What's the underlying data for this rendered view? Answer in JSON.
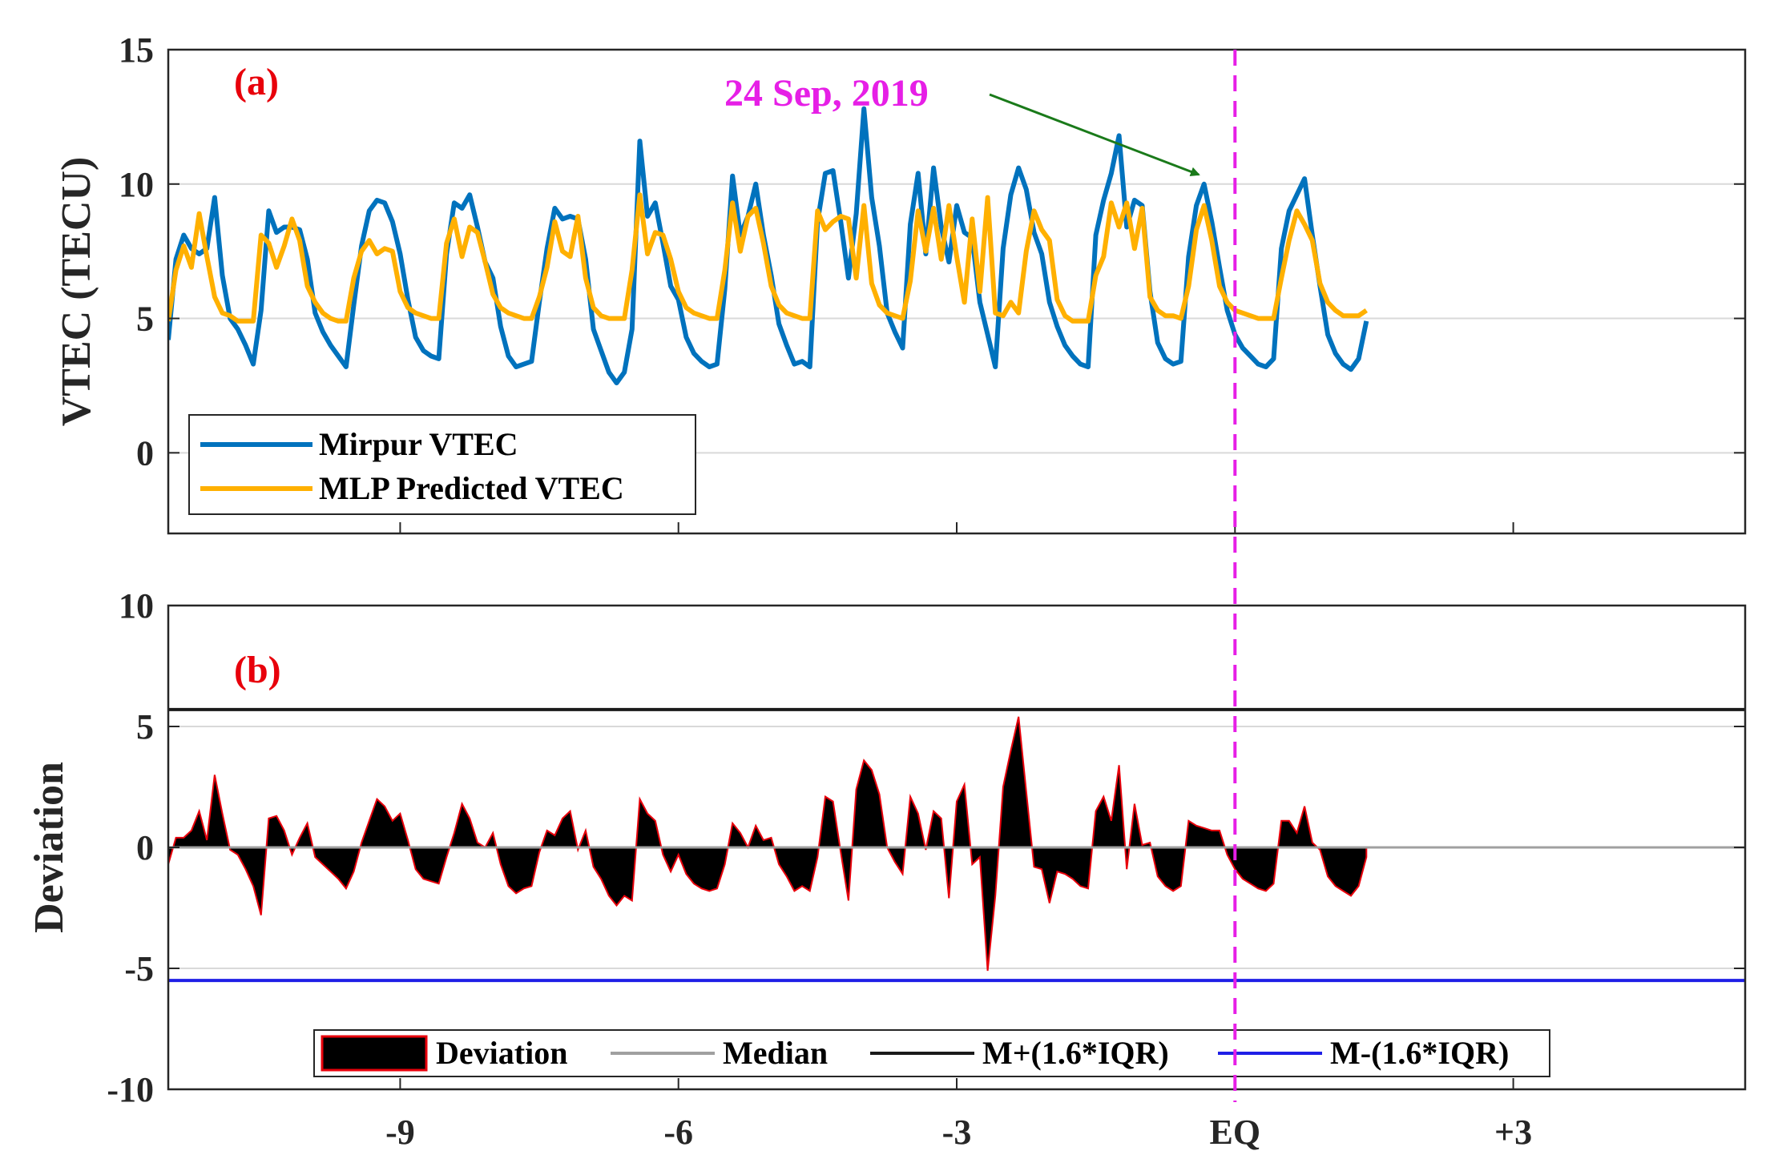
{
  "colors": {
    "mirpur": "#0072bd",
    "mlp": "#ffb000",
    "deviation_fill": "#000000",
    "deviation_edge": "#e8000b",
    "median": "#a0a0a0",
    "upper": "#1a1a1a",
    "lower": "#1f1fe6",
    "eq_line": "#e61fe6",
    "arrow": "#1a7a1a",
    "panel_label": "#e8000b"
  },
  "chart_data": [
    {
      "panel": "a",
      "type": "line",
      "panel_label": "(a)",
      "ylabel": "VTEC (TECU)",
      "ylim": [
        -3,
        15
      ],
      "yticks": [
        0,
        5,
        10,
        15
      ],
      "xlim": [
        -11.5,
        5.5
      ],
      "grid": "horizontal",
      "annotation": {
        "text": "24 Sep, 2019",
        "arrow_to": {
          "x": 0,
          "y": 10.4
        }
      },
      "legend": {
        "position": "bottom-left",
        "entries": [
          "Mirpur VTEC",
          "MLP Predicted VTEC"
        ]
      },
      "series_style": "diurnal, 12 samples per day (2-hour resolution)",
      "series": [
        {
          "name": "Mirpur VTEC",
          "color": "#0072bd",
          "x_start": -11.5,
          "step_days": 0.083333,
          "values": [
            4.2,
            7.2,
            8.1,
            7.6,
            7.4,
            7.6,
            9.5,
            6.6,
            5.0,
            4.6,
            4.0,
            3.3,
            5.3,
            9.0,
            8.2,
            8.4,
            8.4,
            8.3,
            7.2,
            5.2,
            4.5,
            4.0,
            3.6,
            3.2,
            5.5,
            7.7,
            9.0,
            9.4,
            9.3,
            8.6,
            7.4,
            5.7,
            4.3,
            3.8,
            3.6,
            3.5,
            7.4,
            9.3,
            9.1,
            9.6,
            8.4,
            7.1,
            6.5,
            4.7,
            3.6,
            3.2,
            3.3,
            3.4,
            5.6,
            7.6,
            9.1,
            8.7,
            8.8,
            8.7,
            7.2,
            4.6,
            3.8,
            3.0,
            2.6,
            3.0,
            4.6,
            11.6,
            8.8,
            9.3,
            7.8,
            6.2,
            5.7,
            4.3,
            3.7,
            3.4,
            3.2,
            3.3,
            6.1,
            10.3,
            8.1,
            8.8,
            10.0,
            8.1,
            6.6,
            4.8,
            4.0,
            3.3,
            3.4,
            3.2,
            8.6,
            10.4,
            10.5,
            8.6,
            6.5,
            8.9,
            12.8,
            9.5,
            7.7,
            5.2,
            4.5,
            3.9,
            8.5,
            10.4,
            7.4,
            10.6,
            8.4,
            7.1,
            9.2,
            8.2,
            8.0,
            5.6,
            4.4,
            3.2,
            7.6,
            9.6,
            10.6,
            9.8,
            8.2,
            7.4,
            5.6,
            4.7,
            4.0,
            3.6,
            3.3,
            3.2,
            8.1,
            9.4,
            10.4,
            11.8,
            8.4,
            9.4,
            9.2,
            6.0,
            4.1,
            3.5,
            3.3,
            3.4,
            7.3,
            9.2,
            10.0,
            8.6,
            6.9,
            5.3,
            4.4,
            3.9,
            3.6,
            3.3,
            3.2,
            3.5,
            7.6,
            9.0,
            9.6,
            10.2,
            8.1,
            6.2,
            4.4,
            3.7,
            3.3,
            3.1,
            3.5,
            4.9
          ]
        },
        {
          "name": "MLP Predicted VTEC",
          "color": "#ffb000",
          "x_start": -11.5,
          "step_days": 0.083333,
          "values": [
            4.9,
            6.8,
            7.7,
            6.9,
            8.9,
            7.3,
            5.8,
            5.2,
            5.1,
            4.9,
            4.9,
            4.9,
            8.1,
            7.8,
            6.9,
            7.7,
            8.7,
            7.9,
            6.2,
            5.6,
            5.2,
            5.0,
            4.9,
            4.9,
            6.5,
            7.5,
            7.9,
            7.4,
            7.6,
            7.5,
            6.0,
            5.4,
            5.2,
            5.1,
            5.0,
            5.0,
            7.8,
            8.7,
            7.3,
            8.4,
            8.2,
            7.1,
            5.9,
            5.4,
            5.2,
            5.1,
            5.0,
            5.0,
            5.8,
            6.9,
            8.6,
            7.5,
            7.3,
            8.8,
            6.5,
            5.4,
            5.1,
            5.0,
            5.0,
            5.0,
            6.8,
            9.6,
            7.4,
            8.2,
            8.1,
            7.2,
            6.0,
            5.4,
            5.2,
            5.1,
            5.0,
            5.0,
            6.8,
            9.3,
            7.5,
            8.8,
            9.1,
            7.8,
            6.2,
            5.5,
            5.2,
            5.1,
            5.0,
            5.0,
            9.0,
            8.3,
            8.6,
            8.8,
            8.7,
            6.5,
            9.2,
            6.3,
            5.5,
            5.2,
            5.1,
            5.0,
            6.4,
            9.0,
            7.5,
            9.1,
            7.2,
            9.2,
            7.3,
            5.6,
            8.7,
            6.0,
            9.5,
            5.2,
            5.1,
            5.6,
            5.2,
            7.5,
            9.0,
            8.3,
            7.9,
            5.7,
            5.1,
            4.9,
            4.9,
            4.9,
            6.6,
            7.3,
            9.3,
            8.4,
            9.3,
            7.6,
            9.1,
            5.8,
            5.3,
            5.1,
            5.1,
            5.0,
            6.2,
            8.3,
            9.2,
            7.9,
            6.2,
            5.6,
            5.3,
            5.2,
            5.1,
            5.0,
            5.0,
            5.0,
            6.5,
            7.9,
            9.0,
            8.5,
            7.9,
            6.3,
            5.6,
            5.3,
            5.1,
            5.1,
            5.1,
            5.3
          ]
        }
      ]
    },
    {
      "panel": "b",
      "type": "area",
      "panel_label": "(b)",
      "ylabel": "Deviation",
      "ylim": [
        -10,
        10
      ],
      "yticks": [
        -10,
        -5,
        0,
        5,
        10
      ],
      "xlim": [
        -11.5,
        5.5
      ],
      "xticks": [
        -9,
        -6,
        -3,
        0,
        3
      ],
      "xticklabels": [
        "-9",
        "-6",
        "-3",
        "EQ",
        "+3"
      ],
      "grid": "horizontal",
      "legend": {
        "position": "bottom-center",
        "entries": [
          "Deviation",
          "Median",
          "M+(1.6*IQR)",
          "M-(1.6*IQR)"
        ]
      },
      "median": 0,
      "upper_bound": 5.7,
      "lower_bound": -5.5,
      "deviation": {
        "x_start": -11.5,
        "step_days": 0.083333,
        "values": [
          -0.7,
          0.4,
          0.4,
          0.7,
          1.5,
          0.3,
          3.0,
          1.4,
          -0.1,
          -0.3,
          -0.9,
          -1.6,
          -2.8,
          1.2,
          1.3,
          0.7,
          -0.3,
          0.4,
          1.0,
          -0.4,
          -0.7,
          -1.0,
          -1.3,
          -1.7,
          -1.0,
          0.2,
          1.1,
          2.0,
          1.7,
          1.1,
          1.4,
          0.3,
          -0.9,
          -1.3,
          -1.4,
          -1.5,
          -0.4,
          0.6,
          1.8,
          1.2,
          0.2,
          0.0,
          0.6,
          -0.7,
          -1.6,
          -1.9,
          -1.7,
          -1.6,
          -0.2,
          0.7,
          0.5,
          1.2,
          1.5,
          -0.1,
          0.7,
          -0.8,
          -1.3,
          -2.0,
          -2.4,
          -2.0,
          -2.2,
          2.0,
          1.4,
          1.1,
          -0.3,
          -1.0,
          -0.3,
          -1.1,
          -1.5,
          -1.7,
          -1.8,
          -1.7,
          -0.7,
          1.0,
          0.6,
          0.0,
          0.9,
          0.3,
          0.4,
          -0.7,
          -1.2,
          -1.8,
          -1.6,
          -1.8,
          -0.4,
          2.1,
          1.9,
          -0.2,
          -2.2,
          2.4,
          3.6,
          3.2,
          2.2,
          0.0,
          -0.6,
          -1.1,
          2.1,
          1.4,
          -0.1,
          1.5,
          1.2,
          -2.1,
          1.9,
          2.6,
          -0.7,
          -0.4,
          -5.1,
          -2.0,
          2.5,
          4.0,
          5.4,
          2.3,
          -0.8,
          -0.9,
          -2.3,
          -1.0,
          -1.1,
          -1.3,
          -1.6,
          -1.7,
          1.5,
          2.1,
          1.1,
          3.4,
          -0.9,
          1.8,
          0.1,
          0.2,
          -1.2,
          -1.6,
          -1.8,
          -1.6,
          1.1,
          0.9,
          0.8,
          0.7,
          0.7,
          -0.3,
          -0.9,
          -1.3,
          -1.5,
          -1.7,
          -1.8,
          -1.5,
          1.1,
          1.1,
          0.6,
          1.7,
          0.2,
          -0.1,
          -1.2,
          -1.6,
          -1.8,
          -2.0,
          -1.6,
          -0.4
        ]
      },
      "annotation_eq_line": {
        "x": 0,
        "style": "dashed"
      }
    }
  ]
}
